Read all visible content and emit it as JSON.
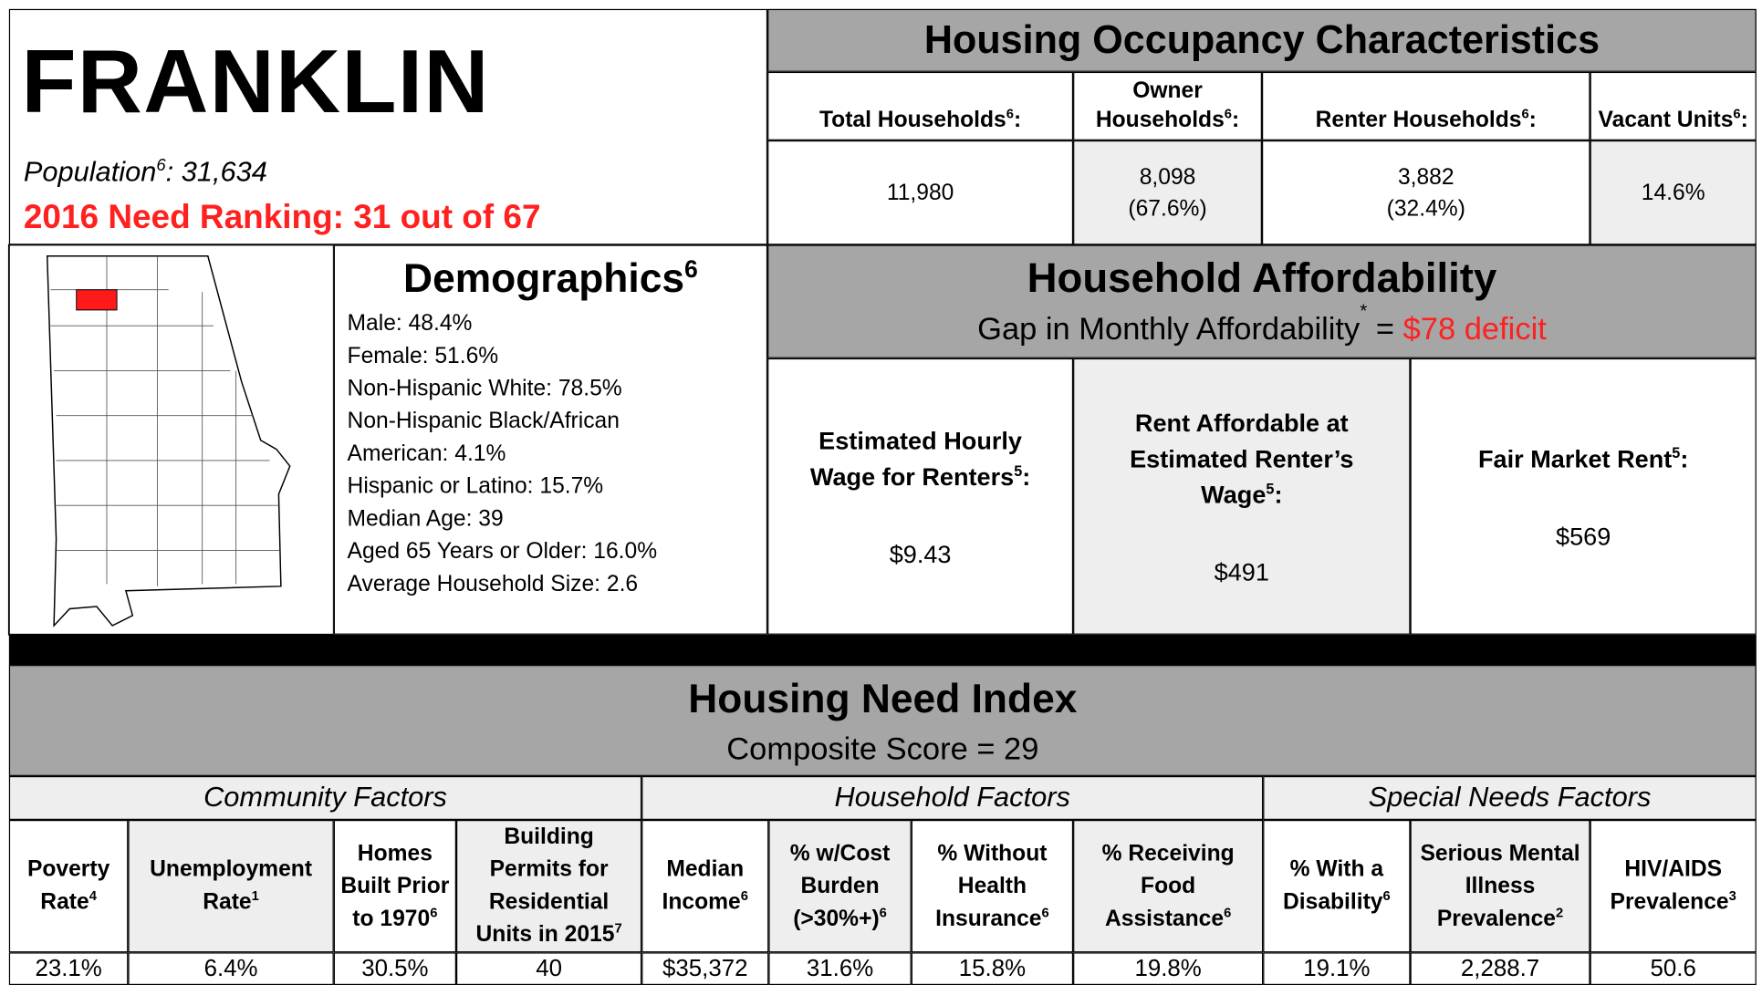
{
  "header": {
    "county": "FRANKLIN",
    "population": [
      "Population",
      {
        "sup": "6"
      },
      ": 31,634"
    ],
    "ranking": "2016 Need Ranking: 31 out of 67"
  },
  "occupancy": {
    "title": "Housing Occupancy Characteristics",
    "columns": [
      {
        "label": [
          "Total Households",
          {
            "sup": "6"
          },
          ":"
        ],
        "value": [
          "11,980"
        ]
      },
      {
        "label": [
          "Owner Households",
          {
            "sup": "6"
          },
          ":"
        ],
        "value": [
          "8,098",
          "(67.6%)"
        ]
      },
      {
        "label": [
          "Renter Households",
          {
            "sup": "6"
          },
          ":"
        ],
        "value": [
          "3,882",
          "(32.4%)"
        ]
      },
      {
        "label": [
          "Vacant Units",
          {
            "sup": "6"
          },
          ":"
        ],
        "value": [
          "14.6%"
        ]
      }
    ]
  },
  "demographics": {
    "title": [
      "Demographics",
      {
        "sup": "6"
      }
    ],
    "items": [
      "Male: 48.4%",
      "Female: 51.6%",
      "Non-Hispanic White: 78.5%",
      "Non-Hispanic Black/African",
      "American: 4.1%",
      "Hispanic or Latino: 15.7%",
      "Median Age: 39",
      "Aged 65 Years or Older: 16.0%",
      "Average Household Size: 2.6"
    ]
  },
  "affordability": {
    "title": "Household Affordability",
    "gap": [
      "Gap in Monthly Affordability",
      {
        "sup": "*"
      },
      " = "
    ],
    "deficit": "$78 deficit",
    "columns": [
      {
        "label": [
          "Estimated Hourly Wage for Renters",
          {
            "sup": "5"
          },
          ":"
        ],
        "value": "$9.43"
      },
      {
        "label": [
          "Rent Affordable at Estimated Renter’s Wage",
          {
            "sup": "5"
          },
          ":"
        ],
        "value": "$491"
      },
      {
        "label": [
          "Fair Market Rent",
          {
            "sup": "5"
          },
          ":"
        ],
        "value": "$569"
      }
    ]
  },
  "need_index": {
    "title": "Housing Need Index",
    "composite": "Composite Score = 29",
    "groups": [
      {
        "name": "Community Factors",
        "factors": [
          {
            "label": [
              "Poverty Rate",
              {
                "sup": "4"
              }
            ],
            "value": "23.1%"
          },
          {
            "label": [
              "Unemployment Rate",
              {
                "sup": "1"
              }
            ],
            "value": "6.4%"
          },
          {
            "label": [
              "Homes Built Prior to 1970",
              {
                "sup": "6"
              }
            ],
            "value": "30.5%"
          },
          {
            "label": [
              "Building Permits for Residential Units in 2015",
              {
                "sup": "7"
              }
            ],
            "value": "40"
          }
        ]
      },
      {
        "name": "Household Factors",
        "factors": [
          {
            "label": [
              "Median Income",
              {
                "sup": "6"
              }
            ],
            "value": "$35,372"
          },
          {
            "label": [
              "% w/Cost Burden (>30%+)",
              {
                "sup": "6"
              }
            ],
            "value": "31.6%"
          },
          {
            "label": [
              "% Without Health Insurance",
              {
                "sup": "6"
              }
            ],
            "value": "15.8%"
          },
          {
            "label": [
              "% Receiving Food Assistance",
              {
                "sup": "6"
              }
            ],
            "value": "19.8%"
          }
        ]
      },
      {
        "name": "Special Needs Factors",
        "factors": [
          {
            "label": [
              "% With a Disability",
              {
                "sup": "6"
              }
            ],
            "value": "19.1%"
          },
          {
            "label": [
              "Serious Mental Illness Prevalence",
              {
                "sup": "2"
              }
            ],
            "value": "2,288.7"
          },
          {
            "label": [
              "HIV/AIDS Prevalence",
              {
                "sup": "3"
              }
            ],
            "value": "50.6"
          }
        ]
      }
    ]
  }
}
